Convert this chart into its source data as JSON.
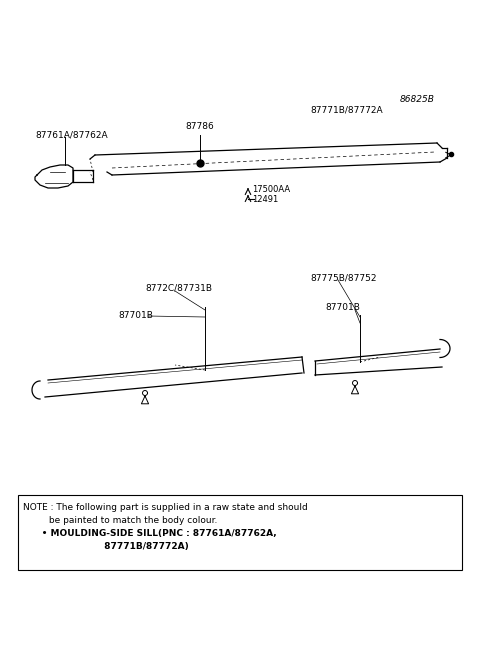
{
  "bg_color": "#ffffff",
  "part_number_top_right": "86825B",
  "label_87771B": "87771B/87772A",
  "label_87786": "87786",
  "label_87761A": "87761A/87762A",
  "label_17500AA": "17500AA",
  "label_12491": "12491",
  "label_8772C": "8772C/87731B",
  "label_87775B": "87775B/87752",
  "label_87701B_left": "87701B",
  "label_87701B_right": "87701B",
  "note_line1": "NOTE : The following part is supplied in a raw state and should",
  "note_line2": "         be painted to match the body colour.",
  "note_line3": "      • MOULDING-SIDE SILL(PNC : 87761A/87762A,",
  "note_line4": "                          87771B/87772A)"
}
